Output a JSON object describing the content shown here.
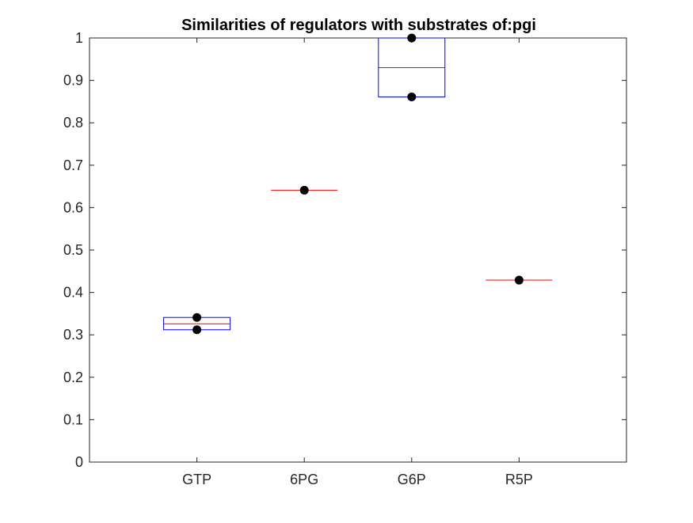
{
  "chart_data": {
    "type": "box",
    "title": "Similarities of regulators with substrates of:pgi",
    "xlabel": "",
    "ylabel": "",
    "categories": [
      "GTP",
      "6PG",
      "G6P",
      "R5P"
    ],
    "ylim": [
      0,
      1
    ],
    "yticks": [
      0,
      0.1,
      0.2,
      0.3,
      0.4,
      0.5,
      0.6,
      0.7,
      0.8,
      0.9,
      1
    ],
    "ytick_labels": [
      "0",
      "0.1",
      "0.2",
      "0.3",
      "0.4",
      "0.5",
      "0.6",
      "0.7",
      "0.8",
      "0.9",
      "1"
    ],
    "boxes": [
      {
        "category": "GTP",
        "q1": 0.312,
        "median": 0.326,
        "q3": 0.341
      },
      {
        "category": "6PG",
        "q1": 0.641,
        "median": 0.641,
        "q3": 0.641
      },
      {
        "category": "G6P",
        "q1": 0.861,
        "median": 0.93,
        "q3": 1.0
      },
      {
        "category": "R5P",
        "q1": 0.429,
        "median": 0.429,
        "q3": 0.429
      }
    ],
    "points": [
      {
        "category": "GTP",
        "values": [
          0.341,
          0.312
        ]
      },
      {
        "category": "6PG",
        "values": [
          0.641
        ]
      },
      {
        "category": "G6P",
        "values": [
          1.0,
          0.861
        ]
      },
      {
        "category": "R5P",
        "values": [
          0.429
        ]
      }
    ],
    "grid": false,
    "colors": {
      "box": "#0000ff",
      "median": "#ff0000",
      "point": "#000000",
      "axis": "#262626"
    }
  }
}
